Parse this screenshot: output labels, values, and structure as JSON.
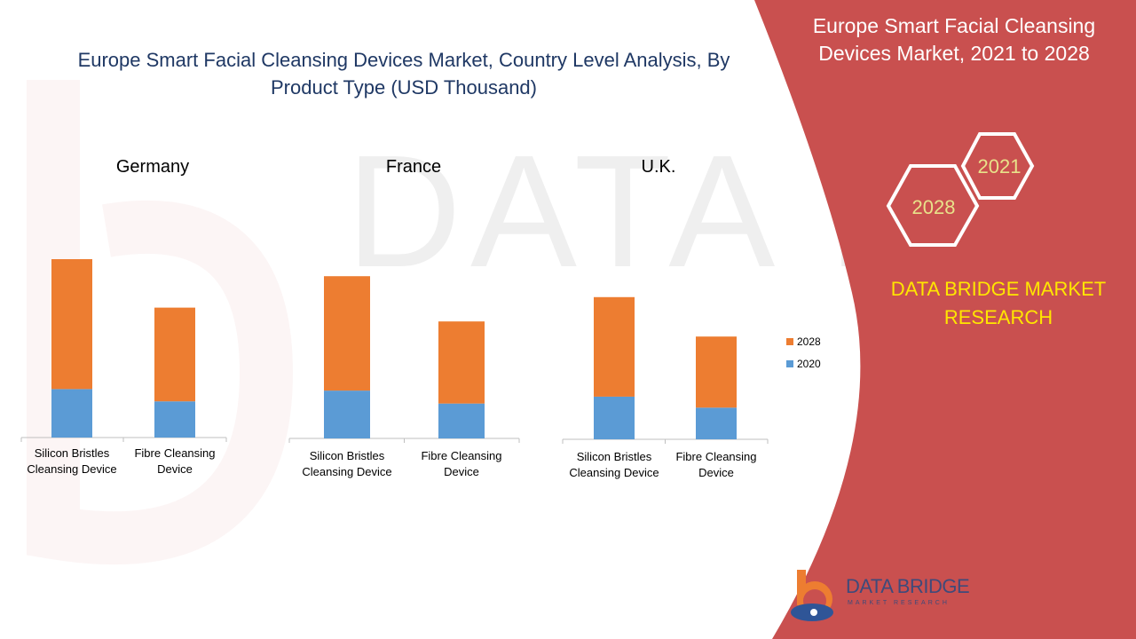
{
  "main_title": "Europe Smart Facial Cleansing Devices Market, Country Level Analysis, By Product Type  (USD Thousand)",
  "side_title": "Europe Smart Facial Cleansing Devices Market, 2021 to 2028",
  "brand_text": "DATA BRIDGE MARKET RESEARCH",
  "hex_labels": [
    "2021",
    "2028"
  ],
  "logo": {
    "text": "DATA BRIDGE",
    "subtext": "MARKET RESEARCH"
  },
  "colors": {
    "series_2020": "#5b9bd5",
    "series_2028": "#ed7d31",
    "panel": "#c9504f",
    "title": "#1f3864",
    "brand_yellow": "#ffe600"
  },
  "legend": [
    {
      "name": "2028",
      "color": "#ed7d31"
    },
    {
      "name": "2020",
      "color": "#5b9bd5"
    }
  ],
  "chart_data": [
    {
      "type": "bar",
      "stacked": true,
      "country": "Germany",
      "categories": [
        "Silicon Bristles Cleansing Device",
        "Fibre Cleansing Device"
      ],
      "series": [
        {
          "name": "2020",
          "values": [
            75,
            56
          ]
        },
        {
          "name": "2028",
          "values": [
            201,
            145
          ]
        }
      ]
    },
    {
      "type": "bar",
      "stacked": true,
      "country": "France",
      "categories": [
        "Silicon Bristles Cleansing Device",
        "Fibre Cleansing Device"
      ],
      "series": [
        {
          "name": "2020",
          "values": [
            74,
            54
          ]
        },
        {
          "name": "2028",
          "values": [
            177,
            127
          ]
        }
      ]
    },
    {
      "type": "bar",
      "stacked": true,
      "country": "U.K.",
      "categories": [
        "Silicon Bristles Cleansing Device",
        "Fibre Cleansing Device"
      ],
      "series": [
        {
          "name": "2020",
          "values": [
            66,
            49
          ]
        },
        {
          "name": "2028",
          "values": [
            154,
            110
          ]
        }
      ]
    }
  ]
}
